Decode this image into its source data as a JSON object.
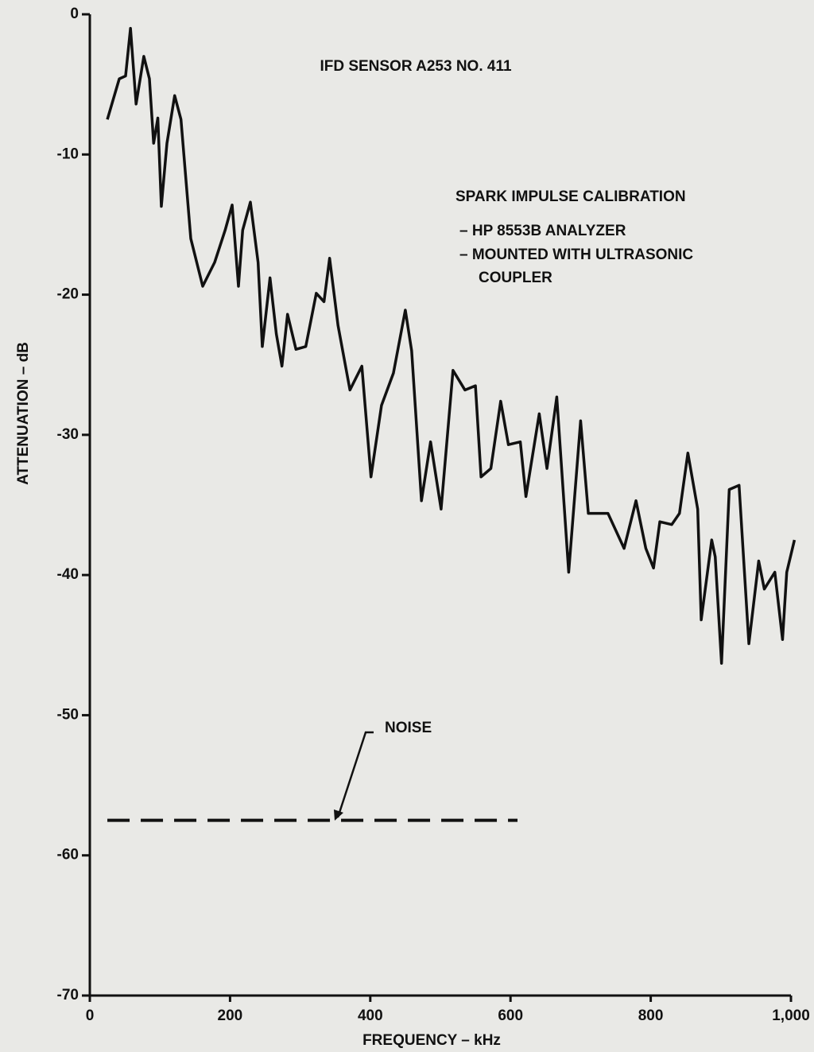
{
  "chart_data": {
    "type": "line",
    "x_label": "FREQUENCY – kHz",
    "y_label": "ATTENUATION – dB",
    "annotations": [
      "IFD SENSOR A253 NO. 411",
      "SPARK IMPULSE CALIBRATION",
      "– HP 8553B ANALYZER",
      "– MOUNTED WITH ULTRASONIC",
      "COUPLER",
      "NOISE"
    ],
    "xlim": [
      0,
      1000
    ],
    "ylim": [
      -70,
      0
    ],
    "xticks": [
      0,
      200,
      400,
      600,
      800,
      {
        "value": 1000,
        "label": "1,000"
      }
    ],
    "yticks": [
      0,
      -10,
      -20,
      -30,
      -40,
      -50,
      -60,
      -70
    ],
    "grid": false,
    "series": [
      {
        "color": "#111111",
        "style": "solid",
        "x": [
          25,
          42,
          51,
          58,
          66,
          77,
          85,
          91,
          97,
          102,
          110,
          121,
          130,
          144,
          161,
          178,
          193,
          203,
          212,
          218,
          229,
          240,
          246,
          257,
          266,
          274,
          282,
          294,
          308,
          323,
          334,
          342,
          354,
          371,
          388,
          401,
          416,
          433,
          450,
          459,
          473,
          486,
          501,
          518,
          535,
          550,
          558,
          572,
          586,
          597,
          614,
          622,
          641,
          652,
          666,
          683,
          700,
          711,
          739,
          762,
          779,
          793,
          804,
          813,
          830,
          841,
          853,
          867,
          872,
          887,
          892,
          901,
          912,
          926,
          940,
          954,
          962,
          977,
          988,
          994,
          1005
        ],
        "values": [
          -7.5,
          -4.6,
          -4.4,
          -1,
          -6.4,
          -3,
          -4.6,
          -9.2,
          -7.4,
          -13.7,
          -9.2,
          -5.8,
          -7.5,
          -16,
          -19.4,
          -17.7,
          -15.4,
          -13.6,
          -19.4,
          -15.4,
          -13.4,
          -17.7,
          -23.7,
          -18.8,
          -22.8,
          -25.1,
          -21.4,
          -23.9,
          -23.7,
          -19.9,
          -20.5,
          -17.4,
          -22.2,
          -26.8,
          -25.1,
          -33,
          -27.9,
          -25.6,
          -21.1,
          -24,
          -34.7,
          -30.5,
          -35.3,
          -25.4,
          -26.8,
          -26.5,
          -33,
          -32.4,
          -27.6,
          -30.7,
          -30.5,
          -34.4,
          -28.5,
          -32.4,
          -27.3,
          -39.8,
          -29,
          -35.6,
          -35.6,
          -38.1,
          -34.7,
          -38.1,
          -39.5,
          -36.2,
          -36.4,
          -35.6,
          -31.3,
          -35.3,
          -43.2,
          -37.5,
          -38.7,
          -46.3,
          -33.9,
          -33.6,
          -44.9,
          -39,
          -41,
          -39.8,
          -44.6,
          -39.8,
          -37.5
        ]
      },
      {
        "color": "#111111",
        "style": "dashed",
        "x": [
          25,
          610
        ],
        "values": [
          -57.5,
          -57.5
        ]
      }
    ]
  }
}
